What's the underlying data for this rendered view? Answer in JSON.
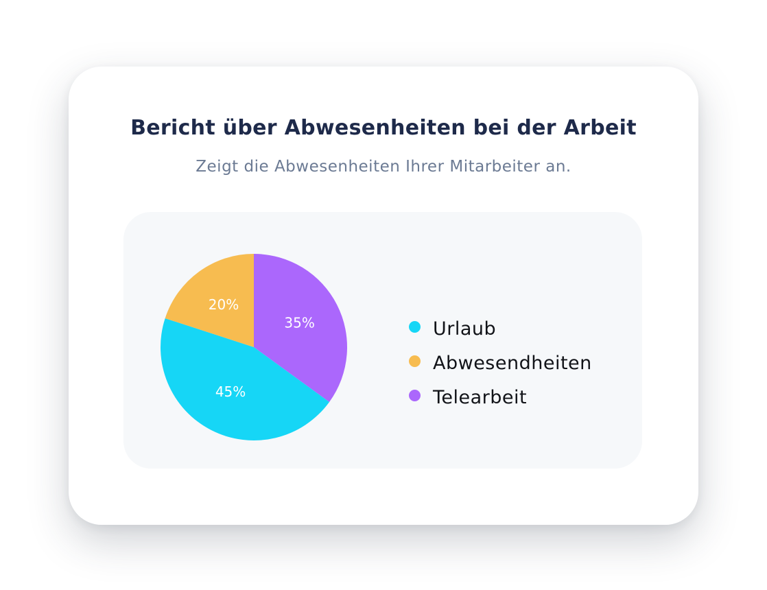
{
  "card": {
    "title": "Bericht über Abwesenheiten bei der Arbeit",
    "subtitle": "Zeigt die Abwesenheiten Ihrer Mitarbeiter an."
  },
  "chart_data": {
    "type": "pie",
    "categories": [
      "Urlaub",
      "Abwesendheiten",
      "Telearbeit"
    ],
    "values": [
      45,
      20,
      35
    ],
    "data_labels": [
      "45%",
      "20%",
      "35%"
    ],
    "colors": [
      "#16d6f6",
      "#f7bc50",
      "#ab67fc"
    ],
    "legend_position": "right"
  }
}
